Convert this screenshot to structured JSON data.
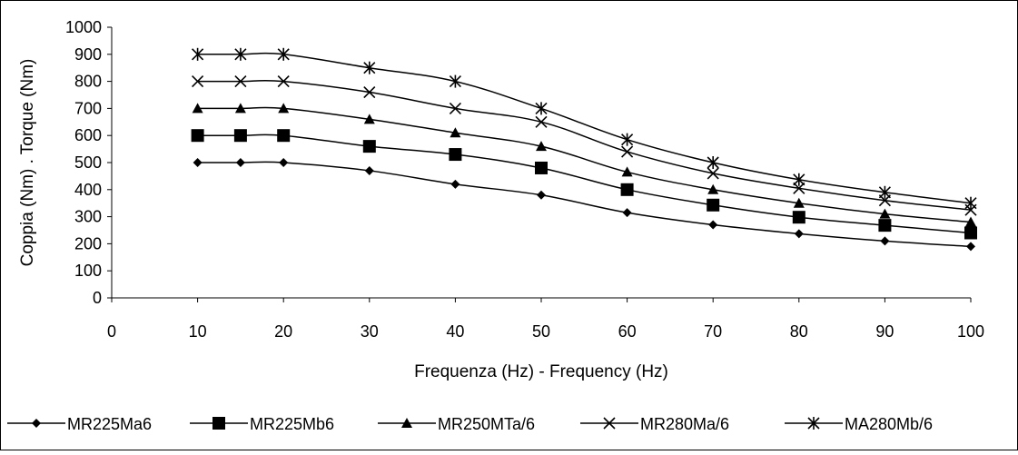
{
  "chart_data": {
    "type": "line",
    "title": "",
    "xlabel": "Frequenza  (Hz) - Frequency (Hz)",
    "ylabel": "Coppia (Nm) . Torque (Nm)",
    "xlim": [
      0,
      100
    ],
    "ylim": [
      0,
      1000
    ],
    "xticks": [
      "0",
      "10",
      "20",
      "30",
      "40",
      "50",
      "60",
      "70",
      "80",
      "90",
      "100"
    ],
    "yticks": [
      "0",
      "100",
      "200",
      "300",
      "400",
      "500",
      "600",
      "700",
      "800",
      "900",
      "1000"
    ],
    "grid": false,
    "legend_position": "bottom",
    "x": [
      10,
      15,
      20,
      30,
      40,
      50,
      60,
      70,
      80,
      90,
      100
    ],
    "series": [
      {
        "name": "MR225Ma6",
        "marker": "diamond",
        "values": [
          500,
          500,
          500,
          470,
          420,
          380,
          315,
          270,
          237,
          210,
          190
        ]
      },
      {
        "name": "MR225Mb6",
        "marker": "square",
        "values": [
          600,
          600,
          600,
          560,
          530,
          480,
          400,
          343,
          298,
          268,
          240
        ]
      },
      {
        "name": "MR250MTa/6",
        "marker": "triangle",
        "values": [
          700,
          700,
          700,
          660,
          610,
          560,
          465,
          400,
          350,
          310,
          280
        ]
      },
      {
        "name": "MR280Ma/6",
        "marker": "x",
        "values": [
          800,
          800,
          800,
          760,
          700,
          650,
          540,
          460,
          405,
          360,
          325
        ]
      },
      {
        "name": "MA280Mb/6",
        "marker": "star",
        "values": [
          900,
          900,
          900,
          850,
          800,
          700,
          585,
          500,
          437,
          390,
          350
        ]
      }
    ]
  }
}
